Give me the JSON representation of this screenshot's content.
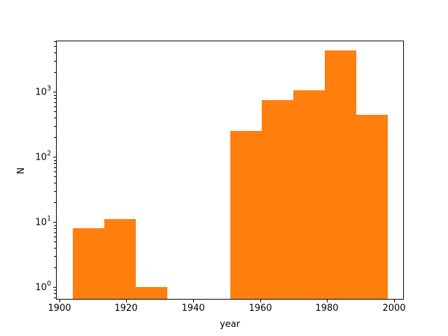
{
  "figure": {
    "background": "#ffffff",
    "text_color": "#000000",
    "spine_color": "#000000"
  },
  "chart_data": {
    "type": "bar",
    "subtype": "histogram",
    "title": "",
    "xlabel": "year",
    "ylabel": "N",
    "xscale": "linear",
    "yscale": "log",
    "grid": false,
    "legend": null,
    "bar_color": "#ff7f0e",
    "bin_edges": [
      1904.0,
      1913.4,
      1922.8,
      1932.2,
      1941.6,
      1951.0,
      1960.4,
      1969.8,
      1979.2,
      1988.6,
      1998.0
    ],
    "counts": [
      8,
      11,
      1,
      0,
      0,
      250,
      750,
      1050,
      4400,
      440
    ],
    "xlim": [
      1899.2,
      2002.7
    ],
    "ylim": [
      0.66,
      6000
    ],
    "x_ticks": [
      {
        "value": 1900,
        "label": "1900"
      },
      {
        "value": 1920,
        "label": "1920"
      },
      {
        "value": 1940,
        "label": "1940"
      },
      {
        "value": 1960,
        "label": "1960"
      },
      {
        "value": 1980,
        "label": "1980"
      },
      {
        "value": 2000,
        "label": "2000"
      }
    ],
    "y_ticks": [
      {
        "value": 1,
        "base": "10",
        "exp": "0"
      },
      {
        "value": 10,
        "base": "10",
        "exp": "1"
      },
      {
        "value": 100,
        "base": "10",
        "exp": "2"
      },
      {
        "value": 1000,
        "base": "10",
        "exp": "3"
      }
    ],
    "y_minor_ticks": [
      0.7,
      0.8,
      0.9,
      2,
      3,
      4,
      5,
      6,
      7,
      8,
      9,
      20,
      30,
      40,
      50,
      60,
      70,
      80,
      90,
      200,
      300,
      400,
      500,
      600,
      700,
      800,
      900,
      2000,
      3000,
      4000,
      5000,
      6000
    ]
  }
}
